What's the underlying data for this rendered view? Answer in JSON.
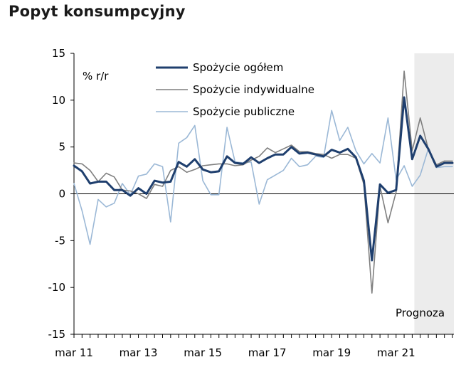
{
  "title": "Popyt konsumpcyjny",
  "chart_data": {
    "type": "line",
    "title": "Popyt konsumpcyjny",
    "ylabel": "% r/r",
    "xlabel": "",
    "ylim": [
      -15,
      15
    ],
    "yticks": [
      15,
      10,
      5,
      0,
      -5,
      -10,
      -15
    ],
    "x_tick_labels": [
      "mar 11",
      "mar 13",
      "mar 15",
      "mar 17",
      "mar 19",
      "mar 21"
    ],
    "x_start": "2011-03",
    "x_end": "2022-12",
    "x_frequency": "quarterly",
    "forecast_label": "Prognoza",
    "forecast_start": "2021-09",
    "grid": false,
    "legend_position": "top",
    "x": [
      "2011-03",
      "2011-06",
      "2011-09",
      "2011-12",
      "2012-03",
      "2012-06",
      "2012-09",
      "2012-12",
      "2013-03",
      "2013-06",
      "2013-09",
      "2013-12",
      "2014-03",
      "2014-06",
      "2014-09",
      "2014-12",
      "2015-03",
      "2015-06",
      "2015-09",
      "2015-12",
      "2016-03",
      "2016-06",
      "2016-09",
      "2016-12",
      "2017-03",
      "2017-06",
      "2017-09",
      "2017-12",
      "2018-03",
      "2018-06",
      "2018-09",
      "2018-12",
      "2019-03",
      "2019-06",
      "2019-09",
      "2019-12",
      "2020-03",
      "2020-06",
      "2020-09",
      "2020-12",
      "2021-03",
      "2021-06",
      "2021-09",
      "2021-12",
      "2022-03",
      "2022-06",
      "2022-09",
      "2022-12"
    ],
    "series": [
      {
        "name": "Spożycie ogółem",
        "color": "#1f3f6e",
        "values": [
          3.0,
          2.4,
          1.1,
          1.3,
          1.3,
          0.4,
          0.4,
          -0.2,
          0.6,
          0.0,
          1.4,
          1.2,
          1.3,
          3.4,
          2.9,
          3.7,
          2.6,
          2.3,
          2.4,
          4.0,
          3.3,
          3.2,
          3.9,
          3.3,
          3.8,
          4.2,
          4.2,
          5.0,
          4.3,
          4.4,
          4.2,
          4.0,
          4.7,
          4.4,
          4.8,
          3.9,
          1.4,
          -7.1,
          1.0,
          0.1,
          0.4,
          10.3,
          3.7,
          6.2,
          4.8,
          2.9,
          3.3,
          3.3
        ]
      },
      {
        "name": "Spożycie indywidualne",
        "color": "#7f7f7f",
        "values": [
          3.3,
          3.2,
          2.5,
          1.3,
          2.2,
          1.8,
          0.4,
          0.3,
          0.0,
          -0.5,
          1.0,
          0.8,
          2.5,
          2.9,
          2.3,
          2.6,
          3.0,
          3.1,
          3.2,
          3.2,
          3.0,
          3.1,
          3.6,
          4.0,
          4.9,
          4.4,
          4.8,
          5.2,
          4.5,
          4.5,
          4.3,
          4.2,
          3.8,
          4.2,
          4.2,
          3.8,
          1.0,
          -10.6,
          0.8,
          -3.1,
          0.2,
          13.1,
          4.6,
          8.1,
          4.8,
          3.1,
          3.5,
          3.5
        ]
      },
      {
        "name": "Spożycie publiczne",
        "color": "#9bb8d6",
        "values": [
          1.1,
          -1.8,
          -5.4,
          -0.6,
          -1.4,
          -1.0,
          1.1,
          -0.1,
          1.9,
          2.1,
          3.2,
          2.9,
          -3.0,
          5.4,
          6.0,
          7.3,
          1.4,
          -0.1,
          -0.1,
          7.1,
          3.4,
          3.3,
          3.4,
          -1.1,
          1.5,
          2.0,
          2.5,
          3.8,
          2.9,
          3.1,
          4.0,
          3.9,
          8.9,
          5.7,
          7.1,
          4.6,
          3.2,
          4.3,
          3.3,
          8.1,
          1.5,
          3.0,
          0.8,
          2.0,
          4.8,
          2.8,
          2.9,
          2.9
        ]
      }
    ]
  }
}
